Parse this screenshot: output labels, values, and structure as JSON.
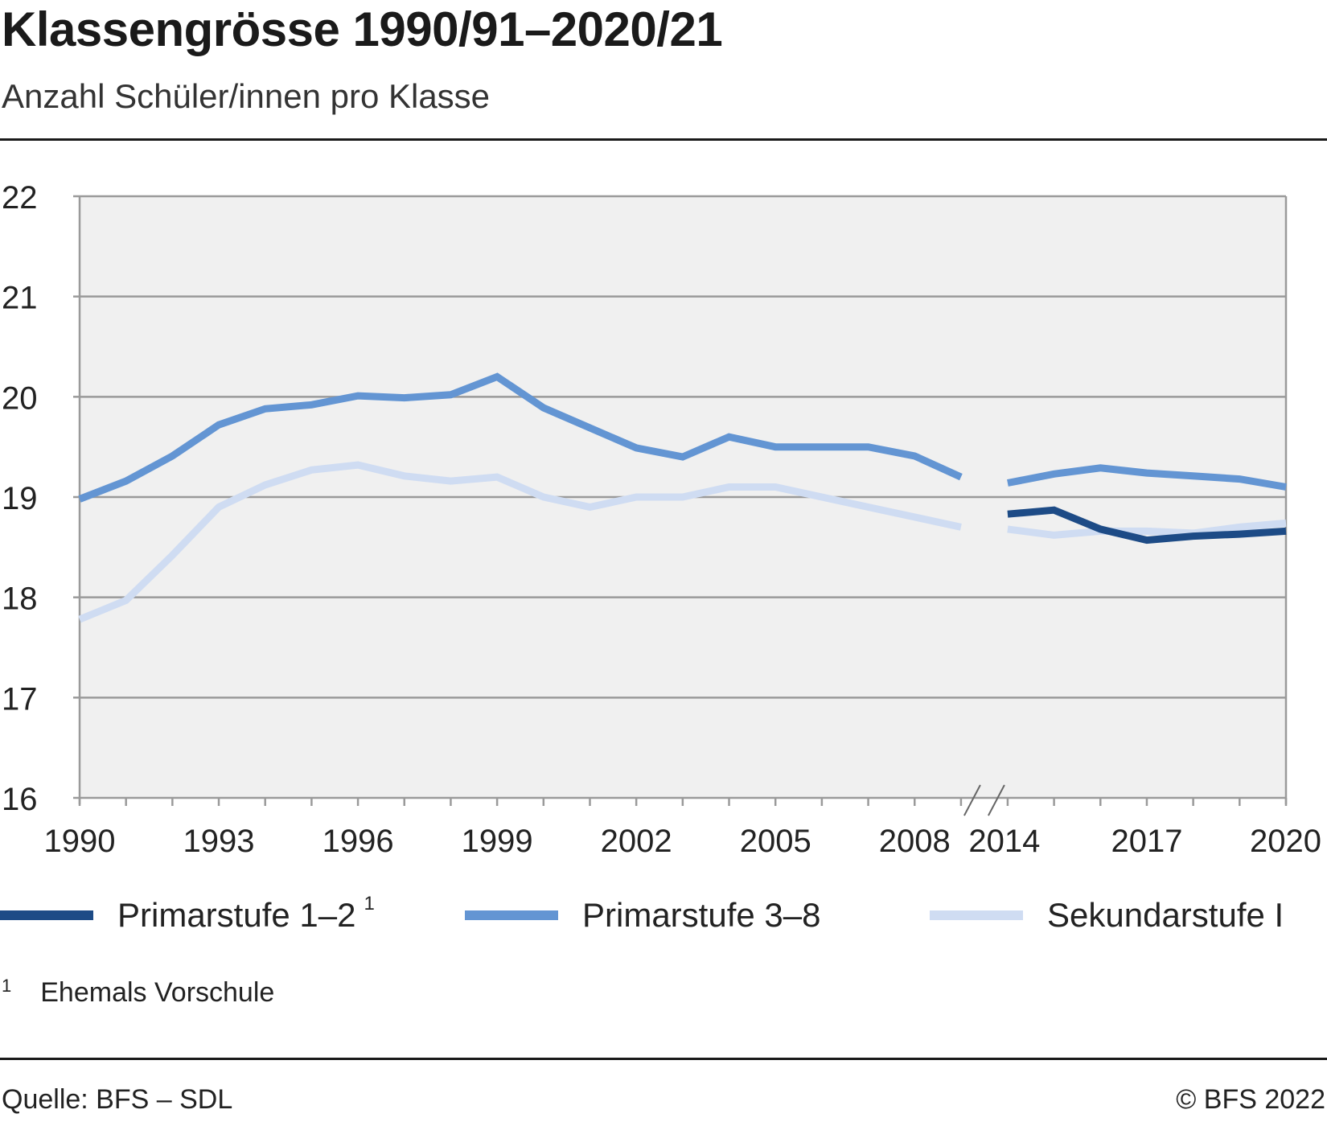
{
  "header": {
    "title": "Klassengrösse 1990/91–2020/21",
    "subtitle": "Anzahl Schüler/innen pro Klasse"
  },
  "footnote": {
    "mark": "1",
    "text": "Ehemals Vorschule"
  },
  "footer": {
    "source": "Quelle: BFS – SDL",
    "copyright": "© BFS 2022"
  },
  "chart_data": {
    "type": "line",
    "ylim": [
      16,
      22
    ],
    "yticks": [
      16,
      17,
      18,
      19,
      20,
      21,
      22
    ],
    "x_labels": [
      "1990",
      "1993",
      "1996",
      "1999",
      "2002",
      "2005",
      "2008",
      "2014",
      "2017",
      "2020"
    ],
    "axis_break": {
      "after": 2009,
      "before": 2014,
      "symbol": "//"
    },
    "grid": true,
    "legend_position": "bottom",
    "colors": {
      "plot_background": "#f0f0f0",
      "grid": "#9a9a9a",
      "axis": "#9a9a9a"
    },
    "series": [
      {
        "name": "Primarstufe 1–2",
        "name_note": "1",
        "color": "#1d4b86",
        "segments": [
          {
            "x": [
              2014,
              2015,
              2016,
              2017,
              2018,
              2019,
              2020
            ],
            "values": [
              18.83,
              18.87,
              18.68,
              18.57,
              18.61,
              18.63,
              18.66
            ]
          }
        ]
      },
      {
        "name": "Primarstufe 3–8",
        "name_note": "",
        "color": "#6395d3",
        "segments": [
          {
            "x": [
              1990,
              1991,
              1992,
              1993,
              1994,
              1995,
              1996,
              1997,
              1998,
              1999,
              2000,
              2001,
              2002,
              2003,
              2004,
              2005,
              2006,
              2007,
              2008,
              2009
            ],
            "values": [
              18.98,
              19.16,
              19.41,
              19.72,
              19.88,
              19.92,
              20.01,
              19.99,
              20.02,
              20.2,
              19.89,
              19.69,
              19.49,
              19.4,
              19.6,
              19.5,
              19.5,
              19.5,
              19.41,
              19.2
            ]
          },
          {
            "x": [
              2014,
              2015,
              2016,
              2017,
              2018,
              2019,
              2020
            ],
            "values": [
              19.14,
              19.23,
              19.29,
              19.24,
              19.21,
              19.18,
              19.1
            ]
          }
        ]
      },
      {
        "name": "Sekundarstufe I",
        "name_note": "",
        "color": "#cfdcf2",
        "segments": [
          {
            "x": [
              1990,
              1991,
              1992,
              1993,
              1994,
              1995,
              1996,
              1997,
              1998,
              1999,
              2000,
              2001,
              2002,
              2003,
              2004,
              2005,
              2006,
              2007,
              2008,
              2009
            ],
            "values": [
              17.78,
              17.97,
              18.42,
              18.9,
              19.12,
              19.27,
              19.32,
              19.21,
              19.16,
              19.2,
              19.0,
              18.9,
              19.0,
              19.0,
              19.1,
              19.1,
              19.0,
              18.9,
              18.8,
              18.7
            ]
          },
          {
            "x": [
              2014,
              2015,
              2016,
              2017,
              2018,
              2019,
              2020
            ],
            "values": [
              18.68,
              18.62,
              18.66,
              18.66,
              18.64,
              18.7,
              18.74
            ]
          }
        ]
      }
    ]
  }
}
